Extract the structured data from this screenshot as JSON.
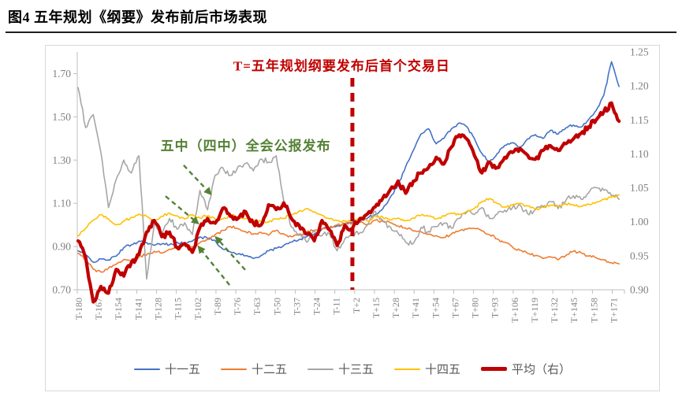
{
  "figure": {
    "title": "图4  五年规划《纲要》发布前后市场表现"
  },
  "chart_data": {
    "type": "line",
    "x_values_start": -180,
    "x_values_step": 5,
    "x_axis": {
      "tick_labels": [
        "T-180",
        "T-167",
        "T-154",
        "T-141",
        "T-128",
        "T-115",
        "T-102",
        "T-89",
        "T-76",
        "T-63",
        "T-50",
        "T-37",
        "T-24",
        "T-11",
        "T+2",
        "T+15",
        "T+28",
        "T+41",
        "T+54",
        "T+67",
        "T+80",
        "T+93",
        "T+106",
        "T+119",
        "T+132",
        "T+145",
        "T+158",
        "T+171"
      ],
      "tick_start": -180,
      "tick_step": 13
    },
    "left_axis": {
      "min": 0.7,
      "max": 1.8,
      "ticks": [
        0.7,
        0.9,
        1.1,
        1.3,
        1.5,
        1.7
      ]
    },
    "right_axis": {
      "min": 0.9,
      "max": 1.25,
      "ticks": [
        0.9,
        0.95,
        1.0,
        1.05,
        1.1,
        1.15,
        1.2,
        1.25
      ]
    },
    "grid": false,
    "legend_position": "bottom",
    "colors": {
      "axis_line": "#bfbfbf",
      "axis_text": "#808080",
      "legend_text": "#595959"
    },
    "series": [
      {
        "key": "fyp-11th",
        "name": "十一五",
        "color": "#4472c4",
        "axis": "left",
        "width": 1.6,
        "noise": 0.007,
        "values": [
          0.88,
          0.862,
          0.828,
          0.842,
          0.838,
          0.855,
          0.895,
          0.908,
          0.925,
          0.918,
          0.905,
          0.912,
          0.908,
          0.92,
          0.912,
          0.925,
          0.945,
          0.938,
          0.928,
          0.888,
          0.875,
          0.866,
          0.858,
          0.845,
          0.858,
          0.88,
          0.892,
          0.905,
          0.92,
          0.932,
          0.946,
          0.958,
          0.98,
          0.986,
          0.996,
          1.006,
          1.012,
          1.018,
          1.032,
          1.048,
          1.075,
          1.13,
          1.185,
          1.27,
          1.345,
          1.42,
          1.445,
          1.375,
          1.4,
          1.445,
          1.472,
          1.455,
          1.4,
          1.33,
          1.292,
          1.33,
          1.368,
          1.38,
          1.36,
          1.398,
          1.418,
          1.4,
          1.438,
          1.42,
          1.448,
          1.462,
          1.452,
          1.488,
          1.53,
          1.6,
          1.755,
          1.64
        ]
      },
      {
        "key": "fyp-12th",
        "name": "十二五",
        "color": "#ed7d31",
        "axis": "left",
        "width": 1.6,
        "noise": 0.007,
        "values": [
          0.868,
          0.838,
          0.795,
          0.782,
          0.8,
          0.818,
          0.84,
          0.832,
          0.852,
          0.862,
          0.878,
          0.87,
          0.888,
          0.898,
          0.908,
          0.898,
          0.918,
          0.932,
          0.955,
          0.975,
          0.992,
          0.982,
          0.968,
          0.958,
          0.965,
          0.952,
          0.975,
          0.958,
          0.945,
          0.952,
          0.968,
          0.975,
          0.982,
          0.988,
          1.0,
          1.005,
          1.008,
          1.012,
          1.002,
          1.022,
          1.015,
          1.01,
          0.995,
          0.985,
          0.972,
          0.968,
          0.958,
          0.95,
          0.942,
          0.958,
          0.972,
          0.98,
          0.984,
          0.972,
          0.955,
          0.935,
          0.92,
          0.898,
          0.882,
          0.868,
          0.858,
          0.845,
          0.852,
          0.838,
          0.858,
          0.878,
          0.872,
          0.856,
          0.848,
          0.838,
          0.825,
          0.82
        ]
      },
      {
        "key": "fyp-13th",
        "name": "十三五",
        "color": "#a6a6a6",
        "axis": "left",
        "width": 1.6,
        "noise": 0.015,
        "values": [
          1.635,
          1.45,
          1.51,
          1.335,
          1.08,
          1.21,
          1.3,
          1.24,
          1.32,
          0.75,
          1.0,
          0.96,
          1.03,
          0.98,
          1.01,
          0.955,
          1.16,
          1.07,
          1.23,
          1.265,
          1.23,
          1.27,
          1.285,
          1.25,
          1.305,
          1.29,
          1.32,
          1.11,
          0.99,
          0.958,
          0.92,
          0.97,
          0.95,
          0.958,
          0.88,
          0.935,
          0.952,
          0.965,
          1.0,
          1.064,
          1.02,
          0.99,
          0.962,
          0.92,
          0.915,
          0.988,
          0.97,
          0.992,
          1.008,
          0.985,
          1.03,
          1.058,
          1.048,
          1.08,
          1.03,
          1.05,
          1.068,
          1.08,
          1.092,
          1.052,
          1.07,
          1.085,
          1.108,
          1.075,
          1.112,
          1.135,
          1.12,
          1.148,
          1.172,
          1.16,
          1.135,
          1.118
        ]
      },
      {
        "key": "fyp-14th",
        "name": "十四五",
        "color": "#ffc000",
        "axis": "left",
        "width": 1.6,
        "noise": 0.007,
        "values": [
          0.95,
          0.985,
          1.022,
          1.048,
          1.028,
          1.0,
          1.018,
          1.035,
          1.05,
          1.04,
          1.022,
          1.04,
          1.055,
          1.042,
          1.028,
          1.048,
          1.032,
          1.042,
          1.028,
          1.027,
          1.045,
          1.038,
          1.03,
          1.022,
          1.015,
          1.013,
          1.028,
          1.03,
          1.048,
          1.064,
          1.075,
          1.06,
          1.045,
          1.028,
          1.02,
          1.018,
          1.022,
          1.03,
          1.018,
          1.042,
          1.035,
          1.022,
          1.032,
          1.02,
          1.032,
          1.045,
          1.04,
          1.028,
          1.042,
          1.055,
          1.048,
          1.062,
          1.075,
          1.108,
          1.122,
          1.1,
          1.082,
          1.092,
          1.1,
          1.088,
          1.072,
          1.082,
          1.092,
          1.088,
          1.098,
          1.092,
          1.085,
          1.095,
          1.105,
          1.118,
          1.128,
          1.138
        ]
      },
      {
        "key": "average-right",
        "name": "平均（右）",
        "color": "#c00000",
        "axis": "right",
        "width": 4.2,
        "noise": 0.005,
        "values": [
          0.972,
          0.948,
          0.882,
          0.905,
          0.895,
          0.93,
          0.92,
          0.94,
          0.952,
          0.985,
          1.002,
          0.978,
          0.985,
          0.962,
          0.968,
          0.955,
          0.992,
          1.005,
          0.998,
          1.02,
          1.008,
          1.005,
          1.015,
          0.998,
          0.995,
          1.025,
          1.018,
          1.028,
          1.005,
          0.995,
          0.982,
          0.972,
          1.002,
          0.988,
          0.965,
          0.995,
          0.99,
          1.005,
          1.012,
          1.022,
          1.035,
          1.048,
          1.06,
          1.042,
          1.06,
          1.072,
          1.08,
          1.095,
          1.085,
          1.11,
          1.128,
          1.122,
          1.098,
          1.072,
          1.088,
          1.08,
          1.095,
          1.102,
          1.108,
          1.098,
          1.092,
          1.105,
          1.112,
          1.105,
          1.115,
          1.122,
          1.13,
          1.14,
          1.15,
          1.162,
          1.175,
          1.148
        ]
      }
    ],
    "annotations": {
      "event_line": {
        "t": 0,
        "top_value": 1.68,
        "color": "#c00000",
        "label": {
          "text": "T=五年规划纲要发布后首个交易日",
          "t": -7,
          "v": 1.715
        }
      },
      "plenum_note": {
        "text": "五中（四中）全会公报发布",
        "t": -70,
        "v": 1.345,
        "color": "#548235"
      },
      "arrows": [
        {
          "from": [
            -110.7,
            1.276
          ],
          "to": [
            -93.1,
            1.144
          ]
        },
        {
          "from": [
            -122.6,
            1.133
          ],
          "to": [
            -101.4,
            1.008
          ]
        },
        {
          "from": [
            -70.3,
            0.792
          ],
          "to": [
            -89.4,
            0.942
          ]
        },
        {
          "from": [
            -80.6,
            0.722
          ],
          "to": [
            -100.8,
            0.898
          ]
        }
      ]
    }
  }
}
